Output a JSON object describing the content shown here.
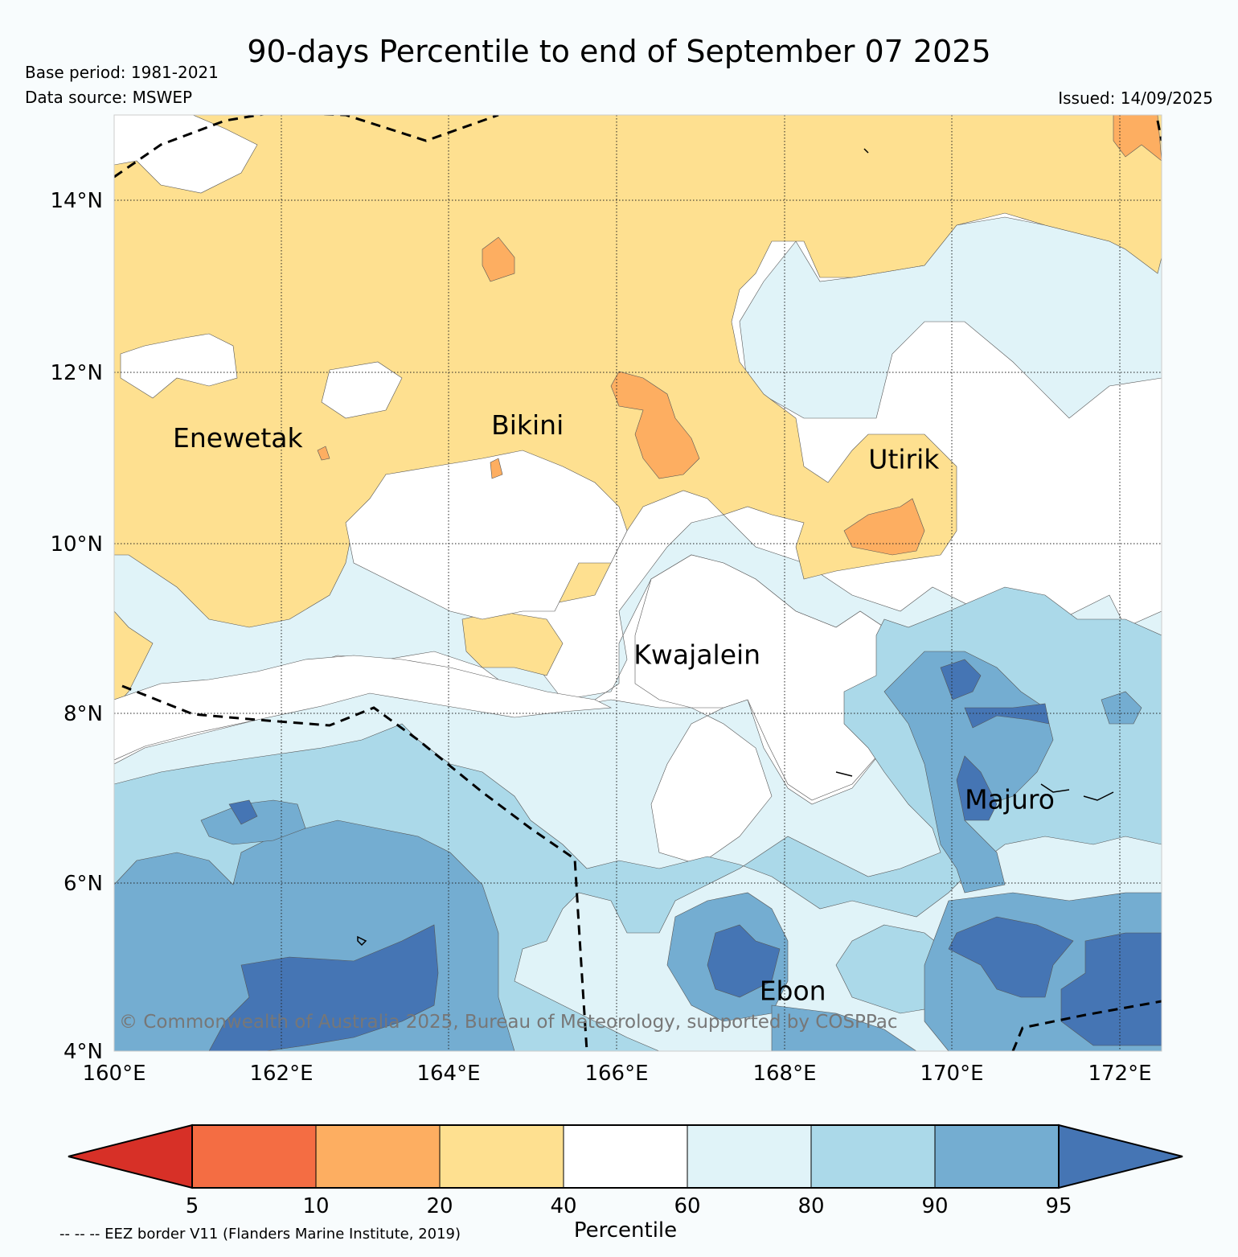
{
  "header": {
    "title": "90-days Percentile to end of September 07 2025",
    "base_period": "Base period: 1981-2021",
    "data_source": "Data source: MSWEP",
    "issued": "Issued: 14/09/2025"
  },
  "map": {
    "lon_ticks": [
      "160°E",
      "162°E",
      "164°E",
      "166°E",
      "168°E",
      "170°E",
      "172°E"
    ],
    "lat_ticks": [
      "14°N",
      "12°N",
      "10°N",
      "8°N",
      "6°N",
      "4°N"
    ],
    "places": [
      {
        "name": "Enewetak",
        "lon": 160.7,
        "lat": 11.1
      },
      {
        "name": "Bikini",
        "lon": 164.5,
        "lat": 11.25
      },
      {
        "name": "Utirik",
        "lon": 169.0,
        "lat": 10.85
      },
      {
        "name": "Kwajalein",
        "lon": 166.2,
        "lat": 8.55
      },
      {
        "name": "Majuro",
        "lon": 170.15,
        "lat": 6.85
      },
      {
        "name": "Ebon",
        "lon": 167.7,
        "lat": 4.6
      }
    ],
    "copyright": "© Commonwealth of Australia 2025, Bureau of Meteorology, supported by COSPPac"
  },
  "legend": {
    "ticks": [
      "5",
      "10",
      "20",
      "40",
      "60",
      "80",
      "90",
      "95"
    ],
    "colors": [
      "#d73027",
      "#f46d43",
      "#fdae61",
      "#fee090",
      "#ffffff",
      "#e0f3f8",
      "#abd9e9",
      "#74add1",
      "#4575b4"
    ],
    "label": "Percentile",
    "eez_note": "-- -- -- EEZ border V11 (Flanders Marine Institute, 2019)"
  }
}
